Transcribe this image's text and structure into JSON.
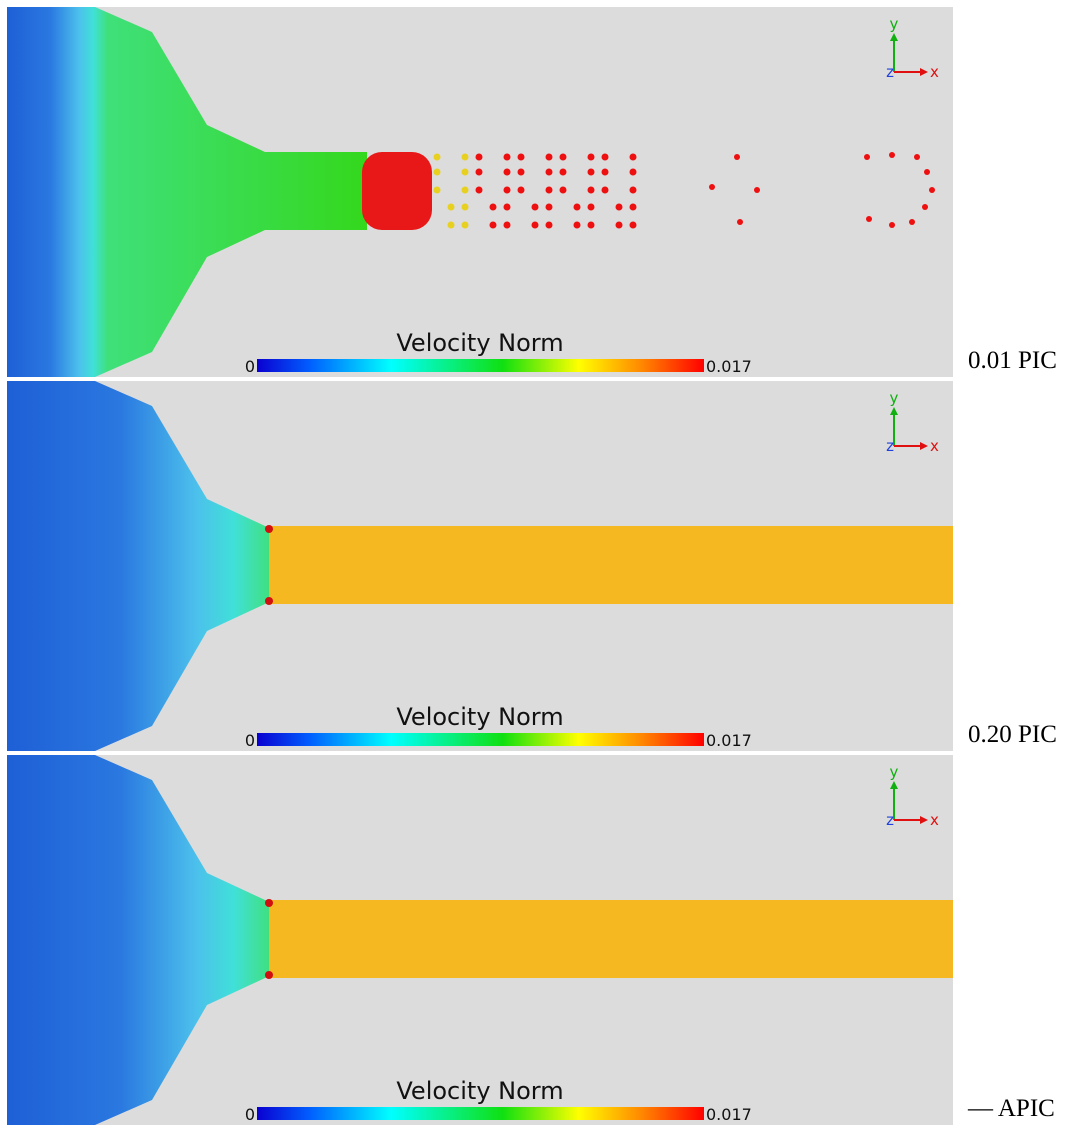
{
  "panels": [
    {
      "colorbar": {
        "title": "Velocity Norm",
        "min": "0",
        "max": "0.017"
      },
      "axes": {
        "y": "y",
        "x": "x",
        "z": "z"
      },
      "label": "0.01 PIC"
    },
    {
      "colorbar": {
        "title": "Velocity Norm",
        "min": "0",
        "max": "0.017"
      },
      "axes": {
        "y": "y",
        "x": "x",
        "z": "z"
      },
      "label": "0.20 PIC"
    },
    {
      "colorbar": {
        "title": "Velocity Norm",
        "min": "0",
        "max": "0.017"
      },
      "axes": {
        "y": "y",
        "x": "x",
        "z": "z"
      },
      "label": "— APIC"
    }
  ]
}
